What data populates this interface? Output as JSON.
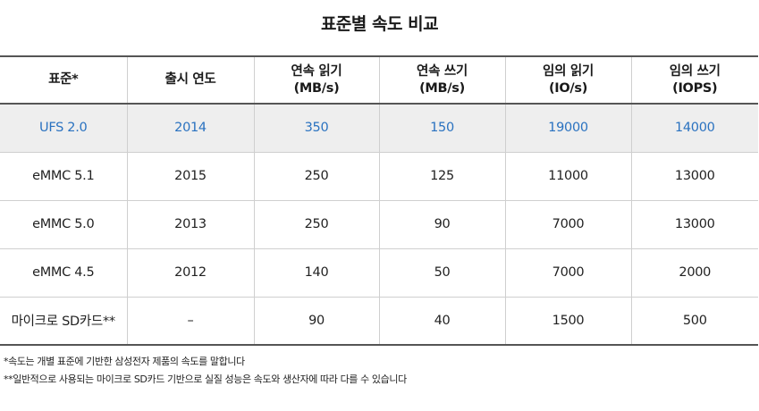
{
  "title": "표준별 속도 비교",
  "header": {
    "c0": "표준*",
    "c1": "출시 연도",
    "c2_line1": "연속 읽기",
    "c2_line2": "(MB/s)",
    "c3_line1": "연속 쓰기",
    "c3_line2": "(MB/s)",
    "c4_line1": "임의 읽기",
    "c4_line2": "(IO/s)",
    "c5_line1": "임의 쓰기",
    "c5_line2": "(IOPS)"
  },
  "rows": [
    {
      "standard": "UFS 2.0",
      "year": "2014",
      "seq_read": "350",
      "seq_write": "150",
      "rand_read": "19000",
      "rand_write": "14000"
    },
    {
      "standard": "eMMC 5.1",
      "year": "2015",
      "seq_read": "250",
      "seq_write": "125",
      "rand_read": "11000",
      "rand_write": "13000"
    },
    {
      "standard": "eMMC 5.0",
      "year": "2013",
      "seq_read": "250",
      "seq_write": "90",
      "rand_read": "7000",
      "rand_write": "13000"
    },
    {
      "standard": "eMMC 4.5",
      "year": "2012",
      "seq_read": "140",
      "seq_write": "50",
      "rand_read": "7000",
      "rand_write": "2000"
    },
    {
      "standard": "마이크로 SD카드**",
      "year": "–",
      "seq_read": "90",
      "seq_write": "40",
      "rand_read": "1500",
      "rand_write": "500"
    }
  ],
  "notes": {
    "note1": "*속도는 개별 표준에 기반한 삼성전자 제품의 속도를 말합니다",
    "note2": "**일반적으로 사용되는 마이크로 SD카드 기반으로 실질 성능은 속도와 생산자에 따라 다를 수 있습니다"
  },
  "colors": {
    "highlight_text": "#2a72c0",
    "highlight_row_bg": "#eeeeee",
    "rule": "#555555"
  }
}
